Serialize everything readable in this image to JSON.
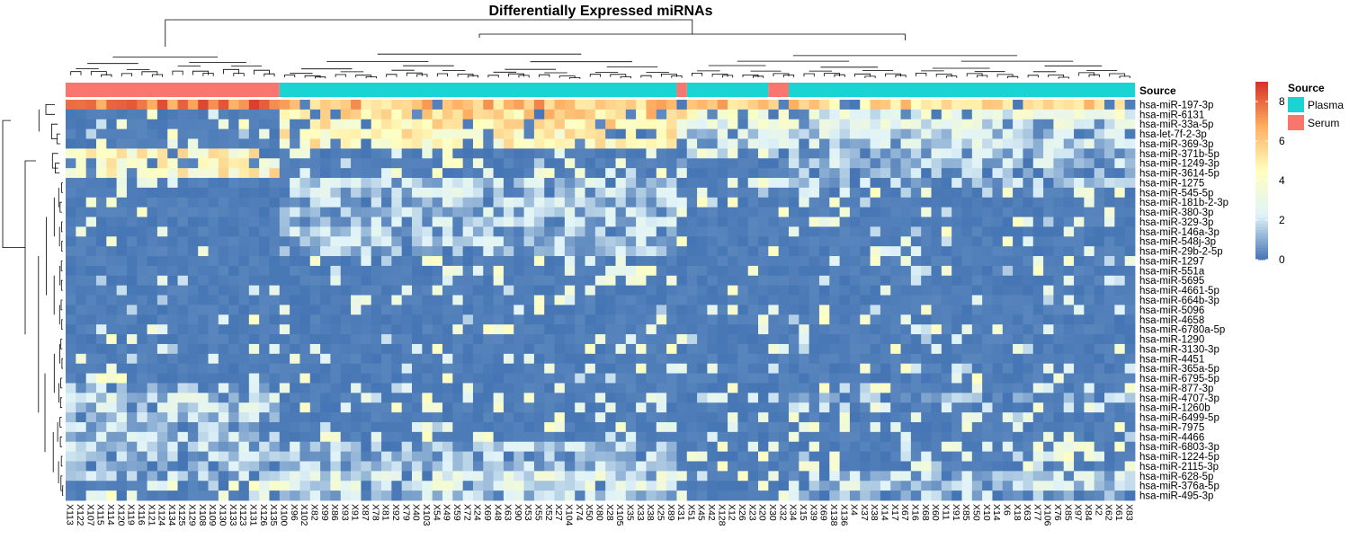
{
  "chart_data": {
    "type": "heatmap",
    "title": "Differentially Expressed miRNAs",
    "rows": [
      "hsa-miR-197-3p",
      "hsa-miR-6131",
      "hsa-miR-33a-5p",
      "hsa-let-7f-2-3p",
      "hsa-miR-369-3p",
      "hsa-miR-371b-5p",
      "hsa-miR-1249-3p",
      "hsa-miR-3614-5p",
      "hsa-miR-1275",
      "hsa-miR-545-5p",
      "hsa-miR-181b-2-3p",
      "hsa-miR-380-3p",
      "hsa-miR-329-3p",
      "hsa-miR-146a-3p",
      "hsa-miR-548j-3p",
      "hsa-miR-29b-2-5p",
      "hsa-miR-1297",
      "hsa-miR-551a",
      "hsa-miR-5695",
      "hsa-miR-4661-5p",
      "hsa-miR-664b-3p",
      "hsa-miR-5096",
      "hsa-miR-4658",
      "hsa-miR-6780a-5p",
      "hsa-miR-1290",
      "hsa-miR-3130-3p",
      "hsa-miR-4451",
      "hsa-miR-365a-5p",
      "hsa-miR-6795-5p",
      "hsa-miR-877-3p",
      "hsa-miR-4707-3p",
      "hsa-miR-1260b",
      "hsa-miR-6499-5p",
      "hsa-miR-7975",
      "hsa-miR-4466",
      "hsa-miR-6803-3p",
      "hsa-miR-1224-5p",
      "hsa-miR-2115-3p",
      "hsa-miR-628-5p",
      "hsa-miR-376a-5p",
      "hsa-miR-495-3p"
    ],
    "columns": [
      "X113",
      "X122",
      "X107",
      "X115",
      "X114",
      "X120",
      "X119",
      "X116",
      "X121",
      "X124",
      "X134",
      "X125",
      "X129",
      "X108",
      "X109",
      "X130",
      "X133",
      "X123",
      "X131",
      "X126",
      "X135",
      "X100",
      "X96",
      "X102",
      "X82",
      "X99",
      "X86",
      "X93",
      "X91",
      "X87",
      "X78",
      "X81",
      "X92",
      "X79",
      "X40",
      "X103",
      "X54",
      "X49",
      "X59",
      "X72",
      "X24",
      "X69",
      "X48",
      "X63",
      "X90",
      "X53",
      "X55",
      "X52",
      "X27",
      "X104",
      "X74",
      "X50",
      "X80",
      "X28",
      "X105",
      "X35",
      "X33",
      "X38",
      "X25",
      "X89",
      "X31",
      "X51",
      "X45",
      "X42",
      "X128",
      "X12",
      "X26",
      "X23",
      "X20",
      "X30",
      "X32",
      "X34",
      "X15",
      "X39",
      "X69",
      "X138",
      "X136",
      "X4",
      "X37",
      "X38",
      "X14",
      "X17",
      "X67",
      "X16",
      "X68",
      "X60",
      "X11",
      "X91",
      "X85",
      "X50",
      "X10",
      "X14",
      "X6",
      "X18",
      "X63",
      "X77",
      "X106",
      "X76",
      "X85",
      "X97",
      "X84",
      "X2",
      "X62",
      "X61",
      "X83"
    ],
    "source": {
      "label": "Source",
      "colors": {
        "Plasma": "#1ad4d4",
        "Serum": "#f8766d"
      },
      "runs": [
        {
          "group": "Serum",
          "count": 21
        },
        {
          "group": "Plasma",
          "count": 39
        },
        {
          "group": "Serum",
          "count": 1
        },
        {
          "group": "Plasma",
          "count": 8
        },
        {
          "group": "Serum",
          "count": 2
        },
        {
          "group": "Plasma",
          "count": 34
        }
      ]
    },
    "legend": {
      "title": "Source",
      "items": [
        {
          "label": "Plasma",
          "color": "#1ad4d4"
        },
        {
          "label": "Serum",
          "color": "#f8766d"
        }
      ]
    },
    "colorbar": {
      "ticks": [
        "8",
        "6",
        "4",
        "2",
        "0"
      ],
      "min": 0,
      "max": 9,
      "colors": [
        "#4575b4",
        "#e0f3f8",
        "#ffffbf",
        "#fdae61",
        "#d73027"
      ]
    },
    "groups": {
      "Serum": [
        0,
        21
      ],
      "Plasma1": [
        21,
        60
      ],
      "Serum2": [
        60,
        61
      ],
      "Plasma2": [
        61,
        69
      ],
      "Serum3": [
        69,
        71
      ],
      "Plasma3": [
        71,
        105
      ]
    },
    "profiles": [
      [
        7.5,
        6.2,
        6.0,
        6.0,
        6.0,
        5.5
      ],
      [
        0.4,
        5.5,
        4.5,
        4.0,
        5.0,
        3.0
      ],
      [
        0.3,
        5.0,
        3.5,
        3.0,
        4.0,
        2.5
      ],
      [
        0.3,
        4.8,
        2.5,
        2.0,
        3.0,
        2.0
      ],
      [
        0.3,
        4.5,
        2.5,
        1.8,
        3.0,
        2.0
      ],
      [
        4.5,
        0.6,
        0.8,
        0.5,
        0.8,
        1.4
      ],
      [
        4.2,
        0.8,
        1.0,
        0.6,
        1.0,
        1.5
      ],
      [
        4.5,
        0.4,
        0.5,
        0.4,
        0.5,
        1.0
      ],
      [
        0.3,
        1.6,
        1.0,
        0.8,
        1.0,
        1.2
      ],
      [
        0.2,
        1.8,
        0.6,
        0.6,
        0.6,
        0.9
      ],
      [
        0.1,
        1.5,
        0.5,
        0.4,
        0.5,
        0.6
      ],
      [
        0.1,
        1.6,
        0.4,
        0.4,
        0.4,
        0.5
      ],
      [
        0.1,
        1.4,
        0.4,
        0.3,
        0.4,
        0.5
      ],
      [
        0.1,
        1.3,
        0.3,
        0.3,
        0.3,
        0.4
      ],
      [
        0.1,
        1.4,
        0.3,
        0.3,
        0.3,
        0.4
      ],
      [
        0.1,
        1.2,
        0.3,
        0.3,
        0.3,
        0.4
      ],
      [
        0.1,
        0.9,
        0.2,
        0.2,
        0.2,
        0.4
      ],
      [
        0.1,
        0.7,
        0.2,
        0.2,
        0.2,
        0.4
      ],
      [
        0.1,
        0.6,
        0.2,
        0.2,
        0.2,
        0.3
      ],
      [
        0.3,
        0.5,
        0.2,
        0.2,
        0.2,
        0.2
      ],
      [
        0.3,
        0.4,
        0.2,
        0.2,
        0.2,
        0.2
      ],
      [
        0.3,
        0.3,
        0.2,
        0.2,
        0.2,
        0.2
      ],
      [
        0.3,
        0.3,
        0.2,
        0.2,
        0.2,
        0.2
      ],
      [
        0.4,
        0.3,
        0.2,
        0.2,
        0.2,
        0.3
      ],
      [
        0.5,
        0.3,
        0.2,
        0.2,
        0.2,
        0.3
      ],
      [
        0.5,
        0.3,
        0.2,
        0.2,
        0.2,
        0.2
      ],
      [
        0.6,
        0.2,
        0.2,
        0.2,
        0.2,
        0.2
      ],
      [
        0.5,
        0.3,
        0.3,
        0.2,
        0.2,
        0.3
      ],
      [
        0.6,
        0.3,
        0.3,
        0.2,
        0.3,
        0.4
      ],
      [
        1.2,
        0.6,
        0.4,
        0.3,
        0.4,
        0.8
      ],
      [
        1.8,
        0.7,
        0.5,
        0.4,
        0.5,
        1.0
      ],
      [
        1.8,
        0.6,
        0.4,
        0.4,
        0.4,
        0.8
      ],
      [
        1.6,
        0.6,
        0.4,
        0.3,
        0.4,
        0.7
      ],
      [
        1.2,
        0.6,
        0.4,
        0.3,
        0.4,
        0.6
      ],
      [
        1.4,
        0.8,
        0.5,
        0.4,
        0.5,
        0.8
      ],
      [
        1.5,
        1.2,
        0.6,
        0.5,
        0.6,
        0.9
      ],
      [
        1.2,
        1.2,
        0.6,
        0.5,
        0.6,
        0.9
      ],
      [
        1.0,
        1.3,
        0.6,
        0.5,
        0.6,
        0.9
      ],
      [
        1.2,
        2.4,
        0.8,
        0.6,
        0.8,
        1.7
      ],
      [
        0.9,
        2.6,
        0.8,
        0.6,
        0.8,
        1.8
      ],
      [
        0.8,
        1.6,
        0.5,
        0.4,
        0.6,
        1.2
      ]
    ]
  }
}
